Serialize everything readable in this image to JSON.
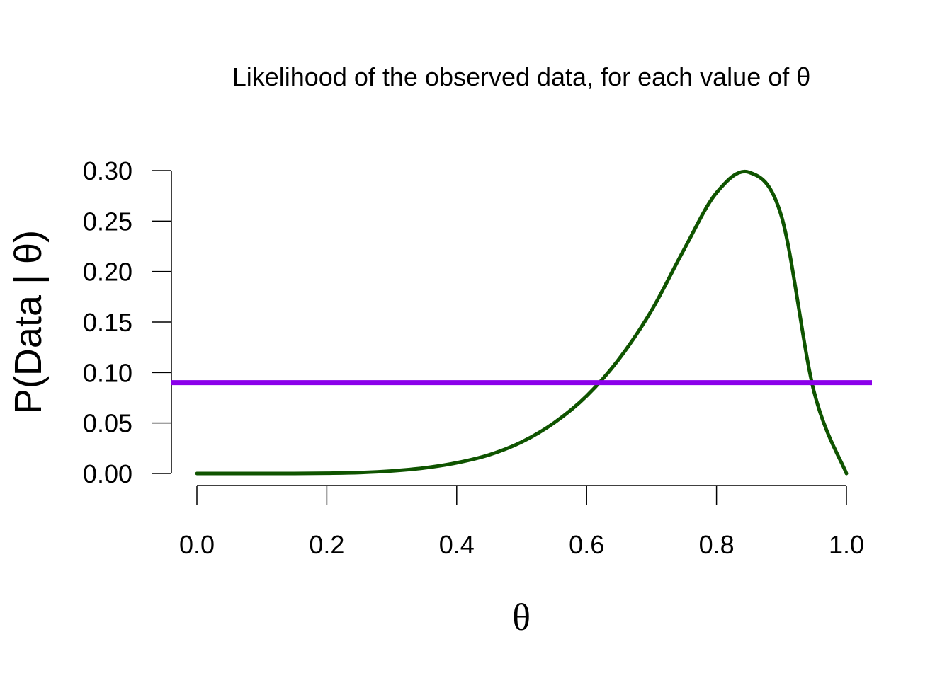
{
  "chart_data": {
    "type": "line",
    "title": "Likelihood of the observed data, for each value of θ",
    "xlabel": "θ",
    "ylabel": "P(Data | θ)",
    "xlim": [
      0.0,
      1.0
    ],
    "ylim": [
      0.0,
      0.3
    ],
    "x_ticks": [
      "0.0",
      "0.2",
      "0.4",
      "0.6",
      "0.8",
      "1.0"
    ],
    "y_ticks": [
      "0.00",
      "0.05",
      "0.10",
      "0.15",
      "0.20",
      "0.25",
      "0.30"
    ],
    "grid": false,
    "legend": "none",
    "series": [
      {
        "color": "#0f5400",
        "x": [
          0.0,
          0.05,
          0.1,
          0.15,
          0.2,
          0.25,
          0.3,
          0.35,
          0.4,
          0.45,
          0.5,
          0.55,
          0.6,
          0.65,
          0.7,
          0.75,
          0.8,
          0.85,
          0.9,
          0.95,
          1.0
        ],
        "y": [
          0.0,
          0.0,
          0.0,
          0.0,
          0.0003,
          0.0009,
          0.0025,
          0.0055,
          0.0106,
          0.0185,
          0.0312,
          0.0502,
          0.0768,
          0.1135,
          0.1615,
          0.2219,
          0.2781,
          0.2983,
          0.2547,
          0.0813,
          0.0
        ]
      },
      {
        "color": "#8b00ea",
        "x": [
          0.0,
          1.0
        ],
        "y": [
          0.09,
          0.09
        ]
      }
    ]
  }
}
